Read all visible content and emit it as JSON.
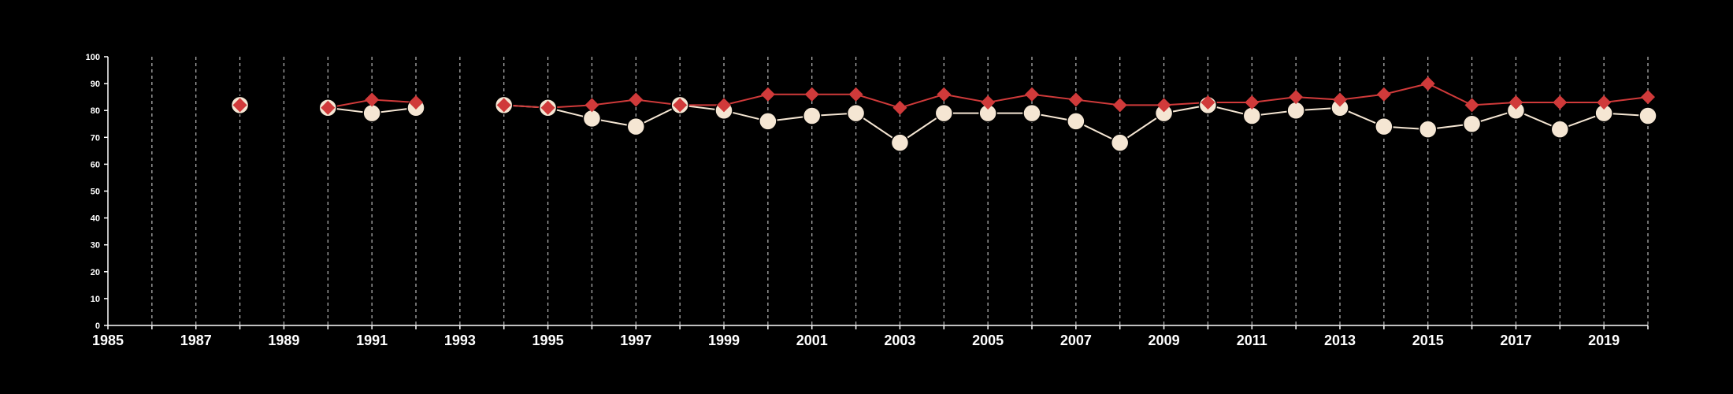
{
  "chart_data": {
    "type": "line",
    "xlim": [
      1985,
      2020
    ],
    "ylim": [
      0,
      100
    ],
    "x_ticks": [
      "1985",
      "1987",
      "1989",
      "1991",
      "1993",
      "1995",
      "1997",
      "1999",
      "2001",
      "2003",
      "2005",
      "2007",
      "2009",
      "2011",
      "2013",
      "2015",
      "2017",
      "2019"
    ],
    "y_ticks": [
      "0",
      "10",
      "20",
      "30",
      "40",
      "50",
      "60",
      "70",
      "80",
      "90",
      "100"
    ],
    "vertical_gridlines_dashed": true,
    "background": "#000000",
    "series": [
      {
        "marker": "circle",
        "color": "#f5e6d3",
        "x": [
          1988,
          1990,
          1991,
          1992,
          1994,
          1995,
          1996,
          1997,
          1998,
          1999,
          2000,
          2001,
          2002,
          2003,
          2004,
          2005,
          2006,
          2007,
          2008,
          2009,
          2010,
          2011,
          2012,
          2013,
          2014,
          2015,
          2016,
          2017,
          2018,
          2019,
          2020
        ],
        "y": [
          82,
          81,
          79,
          81,
          82,
          81,
          77,
          74,
          82,
          80,
          76,
          78,
          79,
          68,
          79,
          79,
          79,
          76,
          68,
          79,
          82,
          78,
          80,
          81,
          74,
          73,
          75,
          80,
          73,
          79,
          78
        ]
      },
      {
        "marker": "diamond",
        "color": "#d03a3a",
        "x": [
          1988,
          1990,
          1991,
          1992,
          1994,
          1995,
          1996,
          1997,
          1998,
          1999,
          2000,
          2001,
          2002,
          2003,
          2004,
          2005,
          2006,
          2007,
          2008,
          2009,
          2010,
          2011,
          2012,
          2013,
          2014,
          2015,
          2016,
          2017,
          2018,
          2019,
          2020
        ],
        "y": [
          82,
          81,
          84,
          83,
          82,
          81,
          82,
          84,
          82,
          82,
          86,
          86,
          86,
          81,
          86,
          83,
          86,
          84,
          82,
          82,
          83,
          83,
          85,
          84,
          86,
          90,
          82,
          83,
          83,
          83,
          85
        ]
      }
    ]
  }
}
